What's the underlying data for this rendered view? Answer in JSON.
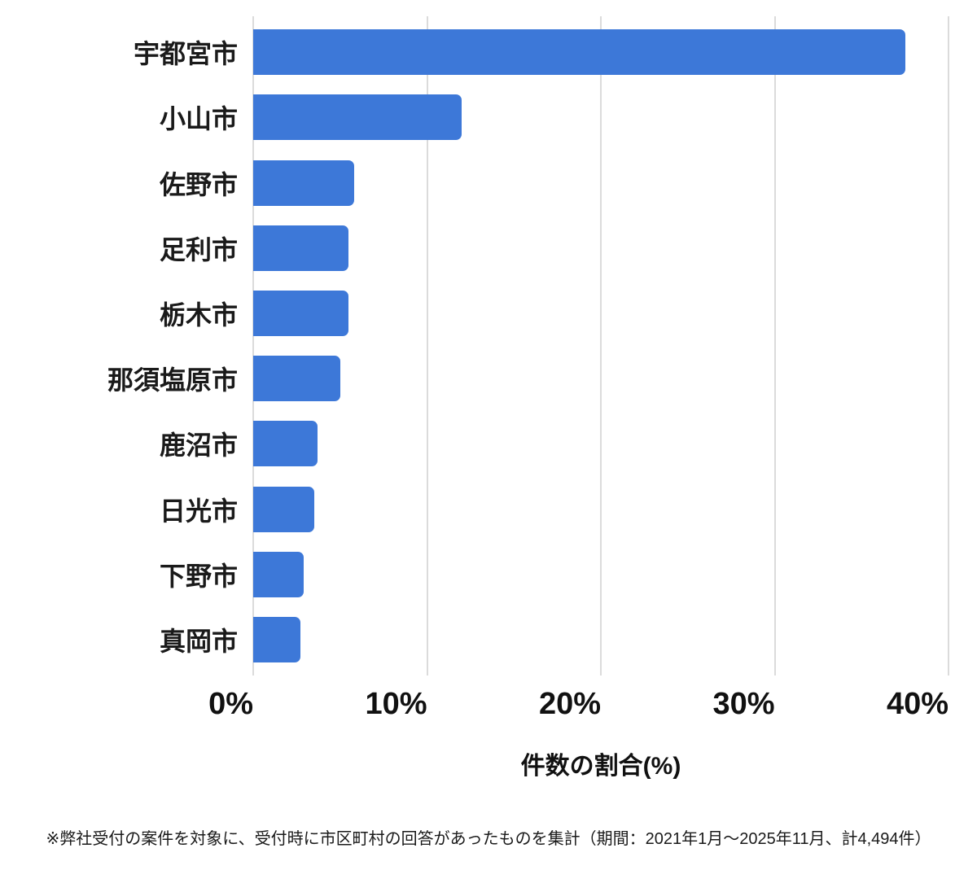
{
  "chart_data": {
    "type": "bar",
    "orientation": "horizontal",
    "title": "",
    "categories": [
      "宇都宮市",
      "小山市",
      "佐野市",
      "足利市",
      "栃木市",
      "那須塩原市",
      "鹿沼市",
      "日光市",
      "下野市",
      "真岡市"
    ],
    "values": [
      37.5,
      12,
      5.8,
      5.5,
      5.5,
      5,
      3.7,
      3.5,
      2.9,
      2.7
    ],
    "unit": "%",
    "xlabel": "件数の割合(%)",
    "ylabel": "",
    "x_tick_labels": [
      "0%",
      "10%",
      "20%",
      "30%",
      "40%"
    ],
    "x_tick_values": [
      0,
      10,
      20,
      30,
      40
    ],
    "xlim": [
      0,
      40
    ],
    "grid": true,
    "legend": false,
    "bar_color": "#3D78D8",
    "gridline_color": "#DBDBDB",
    "text_color": "#111111"
  },
  "footnote": "※弊社受付の案件を対象に、受付時に市区町村の回答があったものを集計（期間：2021年1月～2025年11月、計4,494件）"
}
